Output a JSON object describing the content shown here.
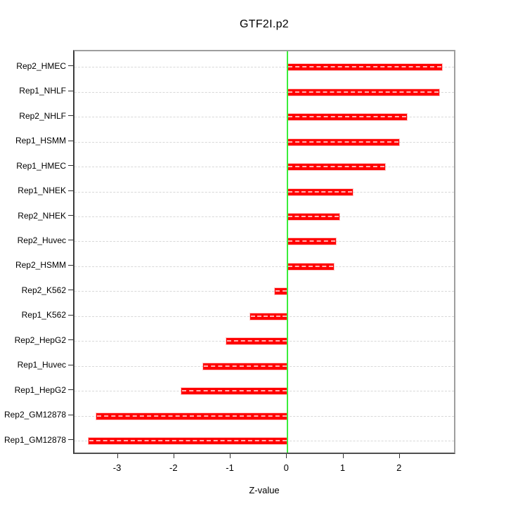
{
  "title": "GTF2I.p2",
  "chart_data": {
    "type": "bar",
    "orientation": "horizontal",
    "title": "GTF2I.p2",
    "xlabel": "Z-value",
    "ylabel": "",
    "categories": [
      "Rep2_HMEC",
      "Rep1_NHLF",
      "Rep2_NHLF",
      "Rep1_HSMM",
      "Rep1_HMEC",
      "Rep1_NHEK",
      "Rep2_NHEK",
      "Rep2_Huvec",
      "Rep2_HSMM",
      "Rep2_K562",
      "Rep1_K562",
      "Rep2_HepG2",
      "Rep1_Huvec",
      "Rep1_HepG2",
      "Rep2_GM12878",
      "Rep1_GM12878"
    ],
    "values": [
      2.74,
      2.69,
      2.12,
      1.98,
      1.73,
      1.15,
      0.92,
      0.86,
      0.82,
      -0.23,
      -0.66,
      -1.09,
      -1.5,
      -1.88,
      -3.39,
      -3.53
    ],
    "xlim": [
      -3.78,
      3.0
    ],
    "xticks": [
      -3,
      -2,
      -1,
      0,
      1,
      2
    ],
    "zero_reference_line": 0,
    "grid": "dashed horizontal line per category row",
    "legend": null,
    "colors": {
      "bar": "#ff0000",
      "bar_inner_dash": "#ffb3b3",
      "zero_line": "#3bee3b",
      "grid": "#d8d8d8",
      "box": "#9e9e9e",
      "text": "#000000"
    }
  }
}
